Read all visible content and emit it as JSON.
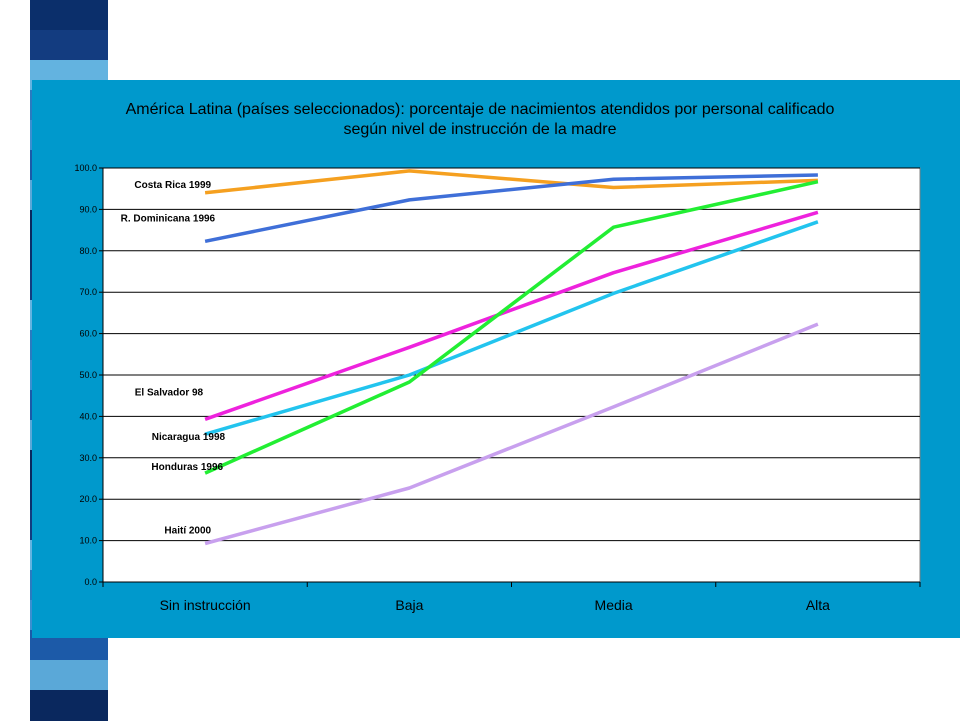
{
  "decor": {
    "stripe_colors": [
      "#0b2f6b",
      "#2a7bc0",
      "#5aa8d8",
      "#133c80",
      "#3b8fd0",
      "#0a285e",
      "#63b3e0",
      "#1c5aa8"
    ]
  },
  "chart_data": {
    "type": "line",
    "title_lines": [
      "América Latina (países seleccionados): porcentaje de nacimientos atendidos por personal calificado",
      "según nivel de instrucción de la madre"
    ],
    "categories": [
      "Sin instrucción",
      "Baja",
      "Media",
      "Alta"
    ],
    "y_ticks": [
      "0.0",
      "10.0",
      "20.0",
      "30.0",
      "40.0",
      "50.0",
      "60.0",
      "70.0",
      "80.0",
      "90.0",
      "100.0"
    ],
    "ylim": [
      0,
      100
    ],
    "grid": true,
    "series": [
      {
        "name": "Costa Rica 1999",
        "color": "#f5a020",
        "values": [
          94.0,
          99.3,
          95.3,
          97.0
        ]
      },
      {
        "name": "R. Dominicana 1996",
        "color": "#3f6fd8",
        "values": [
          82.3,
          92.3,
          97.3,
          98.3
        ]
      },
      {
        "name": "El Salvador 98",
        "color": "#ee22dd",
        "values": [
          39.3,
          56.7,
          74.7,
          89.3
        ]
      },
      {
        "name": "Nicaragua 1998",
        "color": "#22c4ee",
        "values": [
          35.7,
          50.0,
          69.7,
          87.0
        ]
      },
      {
        "name": "Honduras 1996",
        "color": "#22ee33",
        "values": [
          26.3,
          48.3,
          85.7,
          96.7
        ]
      },
      {
        "name": "Haití 2000",
        "color": "#c8a0ee",
        "values": [
          9.3,
          22.7,
          42.3,
          62.3
        ]
      }
    ]
  }
}
